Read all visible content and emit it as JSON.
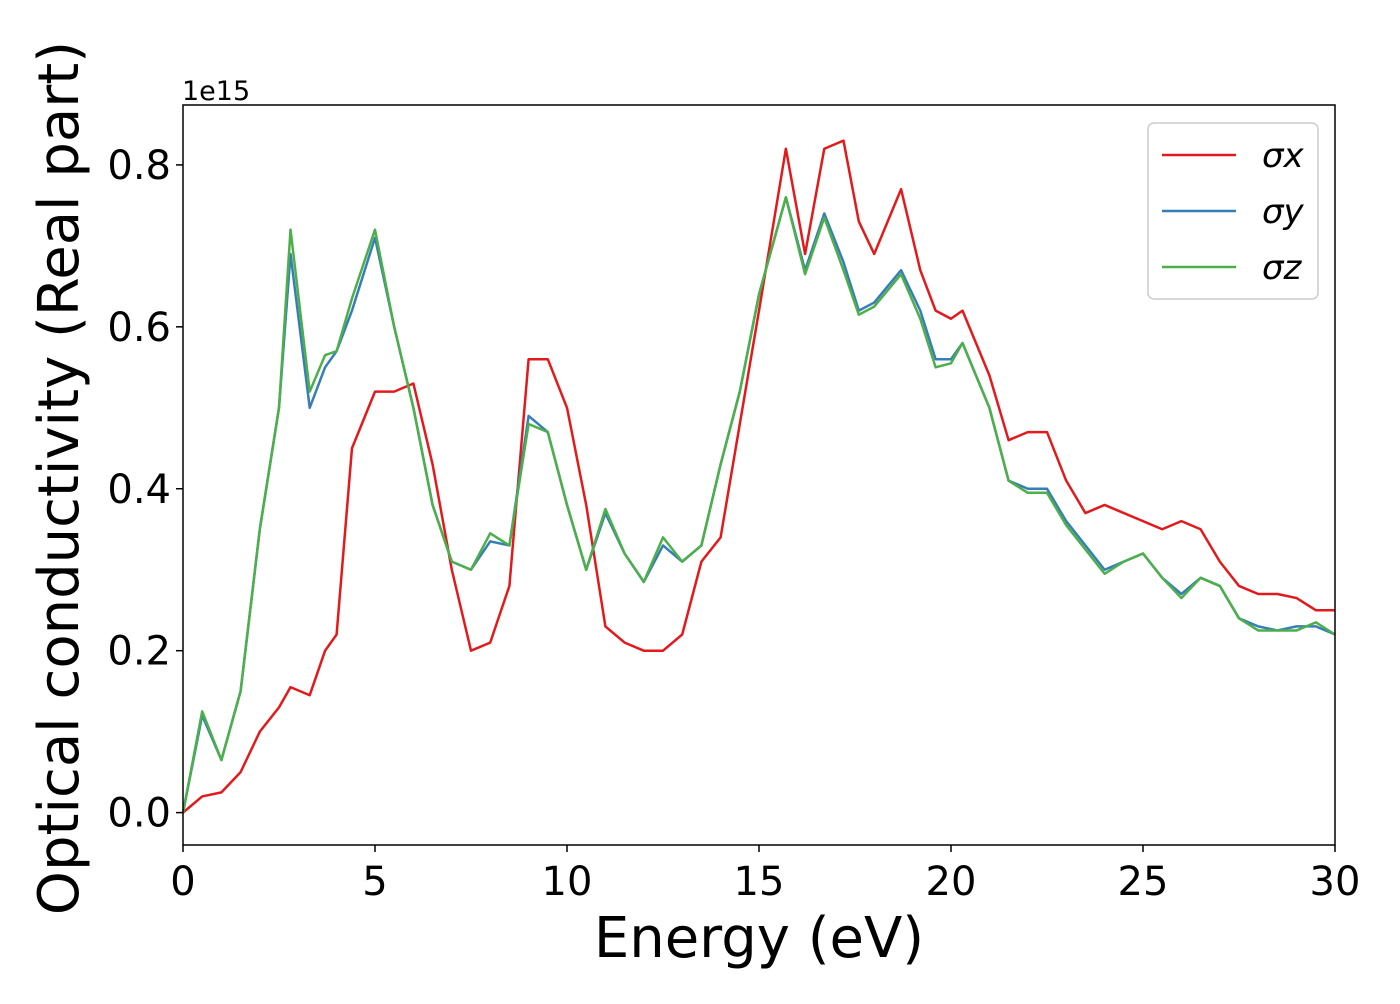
{
  "chart_data": {
    "type": "line",
    "xlabel": "Energy (eV)",
    "ylabel": "Optical conductivity (Real part)",
    "offset_label": "1e15",
    "x": [
      0,
      0.5,
      1,
      1.5,
      2,
      2.5,
      2.8,
      3.3,
      3.7,
      4,
      4.4,
      5,
      5.5,
      6,
      6.5,
      7,
      7.5,
      8,
      8.5,
      9,
      9.5,
      10,
      10.5,
      11,
      11.5,
      12,
      12.5,
      13,
      13.5,
      14,
      14.5,
      15,
      15.7,
      16.2,
      16.7,
      17.2,
      17.6,
      18,
      18.7,
      19.2,
      19.6,
      20,
      20.3,
      21,
      21.5,
      22,
      22.5,
      23,
      23.5,
      24,
      24.5,
      25,
      25.5,
      26,
      26.5,
      27,
      27.5,
      28,
      28.5,
      29,
      29.5,
      30
    ],
    "series": [
      {
        "name": "σx",
        "color": "#e31a1c",
        "values": [
          0,
          0.02,
          0.025,
          0.05,
          0.1,
          0.13,
          0.155,
          0.145,
          0.2,
          0.22,
          0.45,
          0.52,
          0.52,
          0.53,
          0.43,
          0.3,
          0.2,
          0.21,
          0.28,
          0.56,
          0.56,
          0.5,
          0.38,
          0.23,
          0.21,
          0.2,
          0.2,
          0.22,
          0.31,
          0.34,
          0.48,
          0.62,
          0.82,
          0.69,
          0.82,
          0.83,
          0.73,
          0.69,
          0.77,
          0.67,
          0.62,
          0.61,
          0.62,
          0.54,
          0.46,
          0.47,
          0.47,
          0.41,
          0.37,
          0.38,
          0.37,
          0.36,
          0.35,
          0.36,
          0.35,
          0.31,
          0.28,
          0.27,
          0.27,
          0.265,
          0.25,
          0.25
        ]
      },
      {
        "name": "σy",
        "color": "#377eb8",
        "values": [
          0,
          0.12,
          0.065,
          0.15,
          0.35,
          0.5,
          0.69,
          0.5,
          0.55,
          0.57,
          0.62,
          0.71,
          0.6,
          0.5,
          0.38,
          0.31,
          0.3,
          0.335,
          0.33,
          0.49,
          0.47,
          0.38,
          0.3,
          0.37,
          0.32,
          0.285,
          0.33,
          0.31,
          0.33,
          0.43,
          0.52,
          0.64,
          0.76,
          0.67,
          0.74,
          0.68,
          0.62,
          0.63,
          0.67,
          0.62,
          0.56,
          0.56,
          0.58,
          0.5,
          0.41,
          0.4,
          0.4,
          0.36,
          0.33,
          0.3,
          0.31,
          0.32,
          0.29,
          0.27,
          0.29,
          0.28,
          0.24,
          0.23,
          0.225,
          0.23,
          0.23,
          0.22
        ]
      },
      {
        "name": "σz",
        "color": "#4daf4a",
        "values": [
          0,
          0.125,
          0.065,
          0.15,
          0.35,
          0.5,
          0.72,
          0.52,
          0.565,
          0.57,
          0.635,
          0.72,
          0.6,
          0.5,
          0.38,
          0.31,
          0.3,
          0.345,
          0.33,
          0.48,
          0.47,
          0.38,
          0.3,
          0.375,
          0.32,
          0.285,
          0.34,
          0.31,
          0.33,
          0.43,
          0.52,
          0.64,
          0.76,
          0.665,
          0.735,
          0.67,
          0.615,
          0.625,
          0.665,
          0.61,
          0.55,
          0.555,
          0.58,
          0.5,
          0.41,
          0.395,
          0.395,
          0.355,
          0.325,
          0.295,
          0.31,
          0.32,
          0.29,
          0.265,
          0.29,
          0.28,
          0.24,
          0.225,
          0.225,
          0.225,
          0.235,
          0.22
        ]
      }
    ],
    "xlim": [
      0,
      30
    ],
    "xticks": [
      0,
      5,
      10,
      15,
      20,
      25,
      30
    ],
    "ylim": [
      -0.04,
      0.874
    ],
    "yticks": [
      {
        "value": 0,
        "label": "0.0"
      },
      0.2,
      0.4,
      0.6,
      0.8
    ],
    "legend": "upper right"
  }
}
